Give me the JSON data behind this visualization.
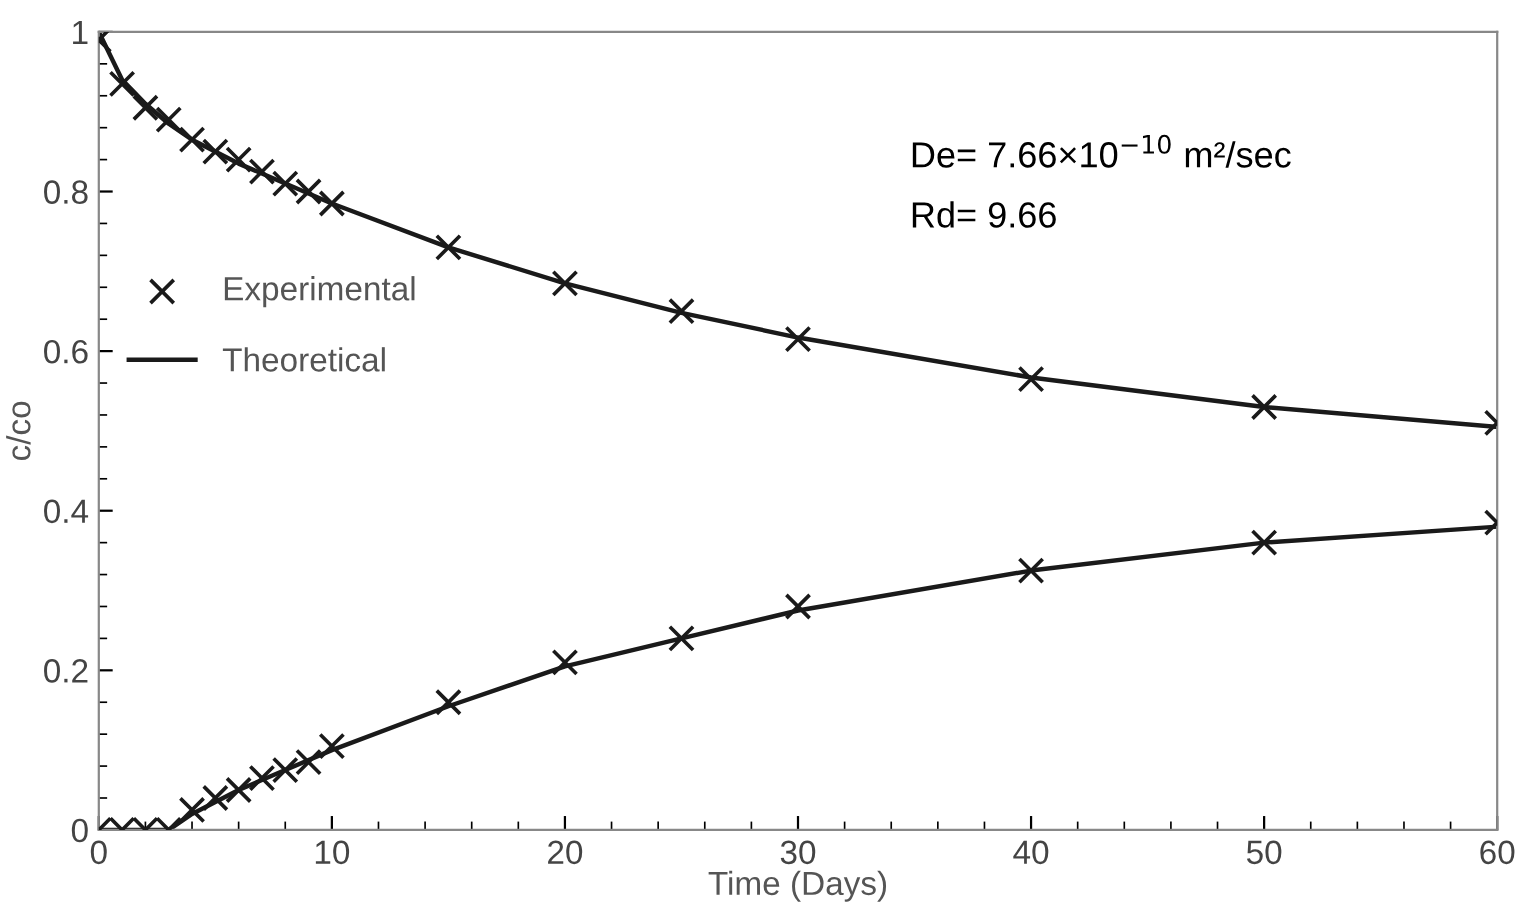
{
  "chart_data": {
    "type": "line",
    "xlabel": "Time (Days)",
    "ylabel": "c/co",
    "xlim": [
      0,
      60
    ],
    "ylim": [
      0,
      1
    ],
    "xticks": [
      0,
      10,
      20,
      30,
      40,
      50,
      60
    ],
    "yticks": [
      0,
      0.2,
      0.4,
      0.6,
      0.8,
      1
    ],
    "legend": "left",
    "annotations": [
      "De= 7.66×10$^{−10}$ m²/sec",
      "Rd= 9.66"
    ],
    "series": [
      {
        "name": "Experimental",
        "type": "scatter",
        "marker": "cross",
        "color": "#1a1a1a",
        "x": [
          0,
          1,
          2,
          3,
          4,
          5,
          6,
          7,
          8,
          9,
          10,
          15,
          20,
          25,
          30,
          40,
          50,
          60
        ],
        "values": [
          0.99,
          0.935,
          0.905,
          0.89,
          0.865,
          0.85,
          0.84,
          0.825,
          0.81,
          0.8,
          0.785,
          0.73,
          0.685,
          0.65,
          0.615,
          0.565,
          0.53,
          0.51
        ]
      },
      {
        "type": "scatter",
        "marker": "cross",
        "color": "#1a1a1a",
        "x": [
          0,
          1,
          2,
          3,
          4,
          5,
          6,
          7,
          8,
          9,
          10,
          15,
          20,
          25,
          30,
          40,
          50,
          60
        ],
        "values": [
          0,
          0,
          0,
          0,
          0.025,
          0.04,
          0.05,
          0.065,
          0.075,
          0.085,
          0.105,
          0.16,
          0.21,
          0.24,
          0.28,
          0.325,
          0.36,
          0.385
        ]
      },
      {
        "name": "Theoretical",
        "color": "#1a1a1a",
        "x": [
          0,
          1,
          2,
          3,
          4,
          6,
          8,
          10,
          15,
          20,
          25,
          30,
          40,
          50,
          60
        ],
        "values": [
          1.0,
          0.94,
          0.91,
          0.885,
          0.865,
          0.835,
          0.81,
          0.785,
          0.73,
          0.685,
          0.648,
          0.617,
          0.567,
          0.53,
          0.505
        ]
      },
      {
        "color": "#1a1a1a",
        "x": [
          0,
          1,
          2,
          3,
          4,
          6,
          8,
          10,
          15,
          20,
          25,
          30,
          40,
          50,
          60
        ],
        "values": [
          0,
          0,
          0,
          0,
          0.02,
          0.05,
          0.075,
          0.1,
          0.155,
          0.205,
          0.24,
          0.275,
          0.325,
          0.36,
          0.38
        ]
      }
    ]
  }
}
